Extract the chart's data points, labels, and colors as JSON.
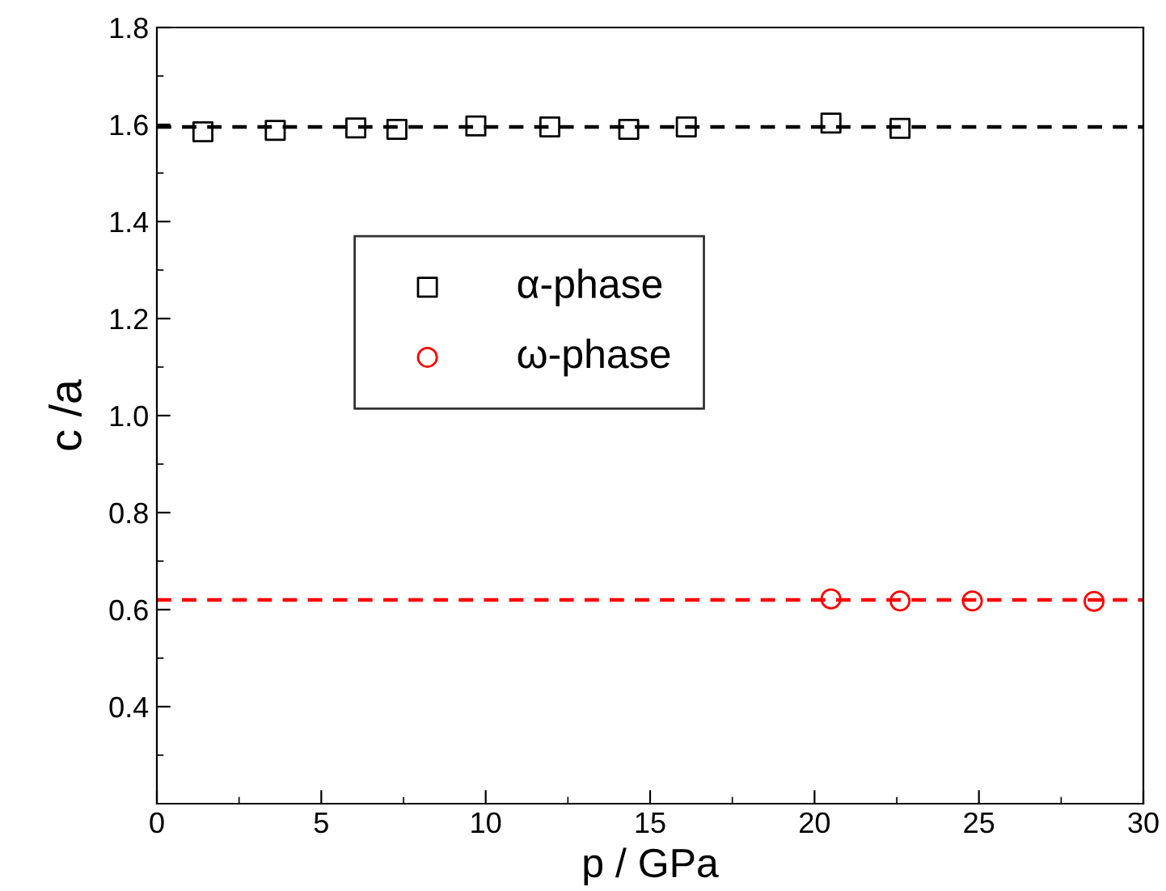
{
  "chart_data": {
    "type": "scatter",
    "xlabel": "p / GPa",
    "ylabel": "c /a",
    "series": [
      {
        "name": "α-phase",
        "color": "#000000",
        "marker": "square",
        "x": [
          1.4,
          3.6,
          6.05,
          7.3,
          9.7,
          11.95,
          14.35,
          16.1,
          20.5,
          22.6
        ],
        "values": [
          1.585,
          1.588,
          1.593,
          1.59,
          1.597,
          1.595,
          1.59,
          1.595,
          1.603,
          1.592
        ]
      },
      {
        "name": "ω-phase",
        "color": "#ff0000",
        "marker": "circle",
        "x": [
          20.5,
          22.6,
          24.8,
          28.5
        ],
        "values": [
          0.622,
          0.618,
          0.618,
          0.617
        ]
      }
    ],
    "ref_lines": [
      {
        "axis": "y",
        "value": 1.595,
        "color": "#000000",
        "line_style": "dashed"
      },
      {
        "axis": "y",
        "value": 0.62,
        "color": "#ff0000",
        "line_style": "dashed"
      }
    ],
    "xlim": [
      0,
      30
    ],
    "xticks": [
      0,
      5,
      10,
      15,
      20,
      25,
      30
    ],
    "ylim": [
      0.2,
      1.8
    ],
    "yticks": [
      0.4,
      0.6,
      0.8,
      {
        "value": 1.0,
        "label": "1.0"
      },
      1.2,
      1.4,
      1.6,
      1.8
    ],
    "legend": "center left",
    "grid": false
  }
}
